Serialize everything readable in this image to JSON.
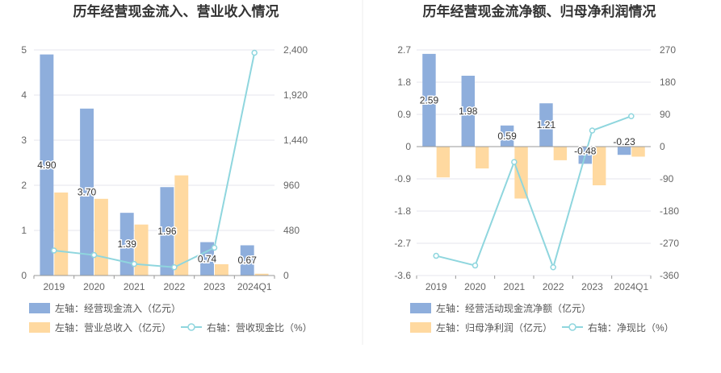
{
  "colors": {
    "bar_primary": "#8eaedc",
    "bar_secondary": "#ffd9a0",
    "line": "#8fd6de",
    "grid": "#e6e6ee",
    "axis": "#999999",
    "divider": "#eeeeee"
  },
  "chart_data": [
    {
      "type": "bar",
      "title": "历年经营现金流入、营业收入情况",
      "categories": [
        "2019",
        "2020",
        "2021",
        "2022",
        "2023",
        "2024Q1"
      ],
      "left_ylim": [
        0,
        5
      ],
      "left_ticks": [
        "0",
        "1",
        "2",
        "3",
        "4",
        "5"
      ],
      "right_ylim": [
        0,
        2400
      ],
      "right_ticks": [
        "0",
        "480",
        "960",
        "1,440",
        "1,920",
        "2,400"
      ],
      "grid": true,
      "legend_position": "bottom",
      "series": [
        {
          "name": "左轴：经营现金流入（亿元）",
          "type": "bar",
          "axis": "left",
          "values": [
            4.9,
            3.7,
            1.39,
            1.96,
            0.74,
            0.67
          ],
          "labels": [
            "4.90",
            "3.70",
            "1.39",
            "1.96",
            "0.74",
            "0.67"
          ]
        },
        {
          "name": "左轴：营业总收入（亿元）",
          "type": "bar",
          "axis": "left",
          "values": [
            1.84,
            1.7,
            1.13,
            2.22,
            0.25,
            0.04
          ]
        },
        {
          "name": "右轴：营收现金比（%）",
          "type": "line",
          "axis": "right",
          "values": [
            266,
            218,
            123,
            88,
            296,
            2370
          ]
        }
      ]
    },
    {
      "type": "bar",
      "title": "历年经营现金流净额、归母净利润情况",
      "categories": [
        "2019",
        "2020",
        "2021",
        "2022",
        "2023",
        "2024Q1"
      ],
      "left_ylim": [
        -3.6,
        2.7
      ],
      "left_ticks": [
        "-3.6",
        "-2.7",
        "-1.8",
        "-0.9",
        "0",
        "0.9",
        "1.8",
        "2.7"
      ],
      "right_ylim": [
        -360,
        270
      ],
      "right_ticks": [
        "-360",
        "-270",
        "-180",
        "-90",
        "0",
        "90",
        "180",
        "270"
      ],
      "grid": true,
      "legend_position": "bottom",
      "series": [
        {
          "name": "左轴：经营活动现金流净额（亿元）",
          "type": "bar",
          "axis": "left",
          "values": [
            2.59,
            1.98,
            0.59,
            1.21,
            -0.48,
            -0.23
          ],
          "labels": [
            "2.59",
            "1.98",
            "0.59",
            "1.21",
            "-0.48",
            "-0.23"
          ]
        },
        {
          "name": "左轴：归母净利润（亿元）",
          "type": "bar",
          "axis": "left",
          "values": [
            -0.86,
            -0.61,
            -1.45,
            -0.38,
            -1.08,
            -0.28
          ]
        },
        {
          "name": "右轴：净现比（%）",
          "type": "line",
          "axis": "right",
          "values": [
            -305,
            -332,
            -43,
            -337,
            45,
            85
          ]
        }
      ]
    }
  ]
}
